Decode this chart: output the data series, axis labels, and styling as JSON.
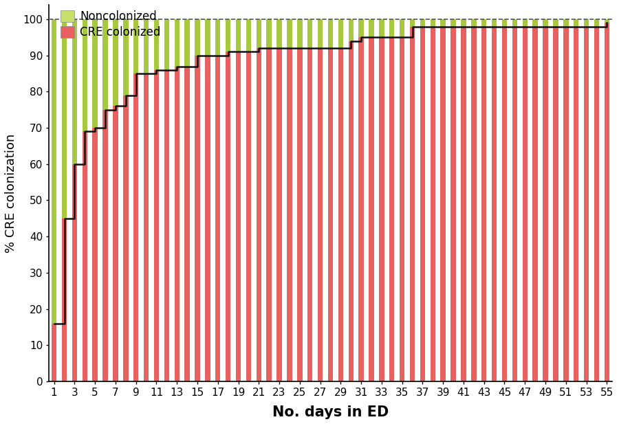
{
  "title": "",
  "xlabel": "No. days in ED",
  "ylabel": "% CRE colonization",
  "xlim": [
    0.5,
    55.5
  ],
  "ylim": [
    0,
    104
  ],
  "yticks": [
    0,
    10,
    20,
    30,
    40,
    50,
    60,
    70,
    80,
    90,
    100
  ],
  "xticks": [
    1,
    3,
    5,
    7,
    9,
    11,
    13,
    15,
    17,
    19,
    21,
    23,
    25,
    27,
    29,
    31,
    33,
    35,
    37,
    39,
    41,
    43,
    45,
    47,
    49,
    51,
    53,
    55
  ],
  "days": [
    1,
    2,
    3,
    4,
    5,
    6,
    7,
    8,
    9,
    10,
    11,
    12,
    13,
    14,
    15,
    16,
    17,
    18,
    19,
    20,
    21,
    22,
    23,
    24,
    25,
    26,
    27,
    28,
    29,
    30,
    31,
    32,
    33,
    34,
    35,
    36,
    37,
    38,
    39,
    40,
    41,
    42,
    43,
    44,
    45,
    46,
    47,
    48,
    49,
    50,
    51,
    52,
    53,
    54,
    55
  ],
  "cre_pct": [
    16,
    45,
    60,
    69,
    70,
    75,
    76,
    79,
    85,
    85,
    86,
    86,
    87,
    87,
    90,
    90,
    90,
    91,
    91,
    91,
    92,
    92,
    92,
    92,
    92,
    92,
    92,
    92,
    92,
    94,
    95,
    95,
    95,
    95,
    95,
    98,
    98,
    98,
    98,
    98,
    98,
    98,
    98,
    98,
    98,
    98,
    98,
    98,
    98,
    98,
    98,
    98,
    98,
    98,
    99
  ],
  "noncolonized_color": "#c8e06a",
  "cre_fill_color": "#f5b8b8",
  "cre_stripe_color": "#e86060",
  "nonc_stripe_color": "#a8c840",
  "line_color": "#111111",
  "dashed_line_color": "#555555",
  "background_color": "#ffffff",
  "legend_noncolonized": "Noncolonized",
  "legend_cre": "CRE colonized",
  "xlabel_fontsize": 15,
  "ylabel_fontsize": 13,
  "tick_fontsize": 11,
  "legend_fontsize": 12
}
